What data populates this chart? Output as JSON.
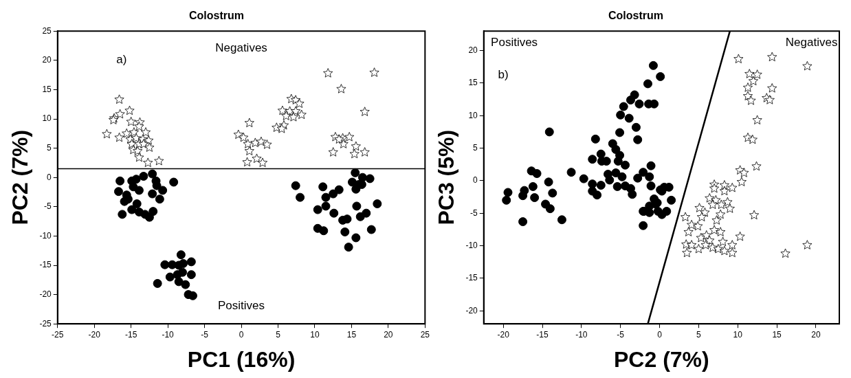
{
  "chart_data": [
    {
      "type": "scatter",
      "title": "Colostrum",
      "xlabel": "PC1 (16%)",
      "ylabel": "PC2 (7%)",
      "xlim": [
        -25,
        25
      ],
      "ylim": [
        -25,
        25
      ],
      "xticks": [
        -25,
        -20,
        -15,
        -10,
        -5,
        0,
        5,
        10,
        15,
        20,
        25
      ],
      "yticks": [
        -25,
        -20,
        -15,
        -10,
        -5,
        0,
        5,
        10,
        15,
        20,
        25
      ],
      "annotations": [
        "a)",
        "Negatives",
        "Positives"
      ],
      "ref_lines": [
        {
          "axis": "y",
          "value": 1.5,
          "color": "#000000"
        }
      ],
      "series": [
        {
          "color": "#000000",
          "marker": "star",
          "x": [
            -16.6,
            -15.2,
            -16.5,
            -17.3,
            -17.4,
            -18.3,
            -16.6,
            -15.0,
            -13.8,
            -13.9,
            -15.6,
            -14.6,
            -13.0,
            -15.1,
            -14.3,
            -13.4,
            -12.6,
            -14.9,
            -13.9,
            -13.3,
            -12.5,
            -14.7,
            -14.1,
            -13.9,
            -12.7,
            -11.2,
            11.8,
            18.1,
            13.6,
            16.8,
            1.1,
            6.8,
            7.4,
            7.9,
            5.6,
            6.6,
            7.4,
            6.1,
            7.1,
            8.2,
            4.8,
            5.8,
            5.5,
            -0.4,
            0.3,
            0.9,
            1.9,
            2.7,
            3.5,
            1.1,
            0.8,
            2.1,
            2.9,
            12.8,
            13.8,
            14.7,
            13.9,
            12.5,
            15.6,
            15.4,
            16.8,
            13.3
          ],
          "values": [
            13.3,
            11.4,
            10.8,
            10.1,
            9.8,
            7.4,
            6.8,
            9.5,
            9.4,
            8.7,
            7.5,
            7.7,
            7.7,
            6.5,
            6.7,
            6.5,
            6.3,
            5.7,
            5.7,
            5.7,
            5.1,
            4.7,
            4.5,
            3.4,
            2.5,
            2.8,
            17.8,
            17.9,
            15.1,
            11.2,
            9.3,
            13.4,
            13.2,
            12.6,
            11.4,
            11.3,
            11.3,
            10.5,
            10.3,
            10.7,
            8.5,
            8.9,
            8.3,
            7.3,
            6.8,
            5.7,
            5.9,
            6.1,
            5.6,
            4.5,
            2.6,
            3.2,
            2.5,
            6.9,
            6.7,
            6.9,
            5.7,
            4.3,
            5.3,
            4.0,
            4.3,
            6.5
          ]
        },
        {
          "color": "#000000",
          "marker": "circle",
          "x": [
            -16.5,
            -16.7,
            -15.6,
            -15.9,
            -16.2,
            -14.9,
            -14.3,
            -13.3,
            -12.1,
            -11.6,
            -14.7,
            -13.9,
            -11.5,
            -10.7,
            -12.1,
            -11.1,
            -9.2,
            -14.2,
            -14.9,
            -13.9,
            -13.1,
            -12.5,
            -12.0,
            -15.4,
            -8.2,
            -10.4,
            -9.4,
            -8.5,
            -7.9,
            -6.8,
            -8.0,
            -9.7,
            -8.7,
            -6.8,
            -8.5,
            -7.6,
            -11.4,
            -7.2,
            -6.6,
            15.5,
            16.5,
            17.5,
            15.1,
            16.0,
            7.4,
            8.0,
            11.1,
            13.3,
            12.5,
            11.5,
            10.4,
            11.5,
            12.6,
            15.7,
            17.0,
            16.2,
            18.5,
            13.8,
            14.4,
            14.1,
            10.4,
            11.2,
            17.7,
            15.6,
            14.6,
            16.4,
            15.6
          ],
          "values": [
            -0.6,
            -2.4,
            -3.0,
            -4.1,
            -6.3,
            -0.6,
            -0.3,
            0.2,
            0.6,
            -0.6,
            -1.6,
            -2.2,
            -1.4,
            -2.2,
            -2.8,
            -3.7,
            -0.8,
            -4.5,
            -5.5,
            -5.9,
            -6.3,
            -6.8,
            -5.8,
            -3.7,
            -13.2,
            -14.9,
            -14.9,
            -15.0,
            -14.7,
            -14.4,
            -16.2,
            -17.0,
            -16.6,
            -16.6,
            -17.8,
            -18.3,
            -18.1,
            -20.0,
            -20.2,
            0.8,
            0.0,
            -0.2,
            -0.8,
            -1.2,
            -1.4,
            -3.4,
            -1.6,
            -2.1,
            -2.8,
            -3.4,
            -5.5,
            -4.9,
            -6.1,
            -4.9,
            -6.1,
            -6.7,
            -4.5,
            -7.3,
            -7.1,
            -9.3,
            -8.7,
            -9.1,
            -8.9,
            -10.3,
            -11.9,
            -1.2,
            -2.0
          ]
        }
      ]
    },
    {
      "type": "scatter",
      "title": "Colostrum",
      "xlabel": "PC2 (7%)",
      "ylabel": "PC3 (5%)",
      "xlim": [
        -22.5,
        23
      ],
      "ylim": [
        -22,
        23
      ],
      "xticks": [
        -20,
        -15,
        -10,
        -5,
        0,
        5,
        10,
        15,
        20
      ],
      "yticks": [
        -20,
        -15,
        -10,
        -5,
        0,
        5,
        10,
        15,
        20
      ],
      "annotations": [
        "Positives",
        "b)",
        "Negatives"
      ],
      "series": [
        {
          "color": "#000000",
          "marker": "circle",
          "x": [
            -0.8,
            0.1,
            -1.5,
            -0.7,
            -1.4,
            -2.6,
            -3.2,
            -3.7,
            -4.6,
            -5.0,
            -3.9,
            -3.0,
            -2.8,
            -5.1,
            -6.0,
            -8.2,
            -14.1,
            -5.6,
            -5.1,
            -4.4,
            -5.3,
            -7.5,
            -6.8,
            -7.4,
            -8.6,
            -6.6,
            -5.6,
            -4.8,
            -6.4,
            -5.4,
            -4.4,
            -3.7,
            -3.5,
            -2.8,
            -2.1,
            -1.1,
            -1.3,
            -1.1,
            -0.7,
            0.1,
            0.6,
            -0.3,
            -1.3,
            -2.1,
            -1.3,
            -0.2,
            0.3,
            -2.1,
            -9.7,
            -11.3,
            -8.6,
            -7.5,
            -8.6,
            -8.0,
            -16.4,
            -15.7,
            -14.2,
            -16.2,
            -13.7,
            -17.3,
            -17.5,
            -16.0,
            -14.6,
            -14.0,
            -19.4,
            -19.6,
            -17.5,
            -12.5,
            1.2,
            1.5,
            0.9,
            0.3,
            -0.5,
            -2.0
          ],
          "values": [
            17.7,
            16.0,
            14.9,
            11.8,
            11.8,
            11.8,
            13.2,
            12.4,
            11.4,
            10.1,
            9.6,
            8.2,
            6.3,
            7.4,
            5.7,
            6.4,
            7.5,
            4.8,
            3.9,
            2.4,
            3.0,
            4.1,
            3.0,
            3.0,
            3.3,
            1.0,
            1.2,
            0.6,
            0.1,
            -0.9,
            -0.8,
            -1.2,
            -2.1,
            0.4,
            1.3,
            2.3,
            0.6,
            -0.8,
            -2.8,
            -1.4,
            -1.0,
            -3.4,
            -3.9,
            -4.7,
            -4.9,
            -4.7,
            -5.2,
            -6.9,
            0.3,
            1.3,
            -0.5,
            -0.7,
            -1.6,
            -2.2,
            1.5,
            1.1,
            -0.2,
            -0.9,
            -1.9,
            -1.5,
            -2.3,
            -2.6,
            -3.6,
            -4.3,
            -1.8,
            -3.0,
            -6.3,
            -6.0,
            -1.0,
            -3.0,
            -4.7,
            -1.6,
            -3.6,
            -4.7
          ]
        },
        {
          "color": "#000000",
          "marker": "star",
          "x": [
            10.1,
            14.4,
            18.9,
            11.5,
            12.5,
            12.0,
            11.3,
            14.4,
            11.3,
            11.7,
            13.7,
            14.1,
            12.5,
            11.3,
            11.9,
            12.4,
            10.3,
            10.8,
            10.5,
            7.0,
            8.3,
            9.3,
            8.3,
            7.0,
            6.4,
            7.2,
            8.1,
            8.7,
            6.8,
            7.9,
            9.0,
            5.1,
            5.8,
            5.4,
            7.8,
            7.3,
            12.1,
            3.3,
            4.1,
            4.9,
            3.7,
            7.0,
            7.8,
            10.3,
            5.3,
            6.0,
            6.4,
            3.4,
            4.1,
            5.0,
            5.9,
            6.8,
            8.1,
            7.5,
            8.3,
            9.3,
            9.3,
            3.5,
            16.1,
            18.9
          ],
          "values": [
            18.7,
            19.0,
            17.6,
            16.4,
            16.3,
            15.3,
            14.3,
            14.2,
            13.0,
            12.3,
            12.7,
            12.4,
            9.3,
            6.6,
            6.3,
            2.2,
            1.6,
            1.2,
            -0.2,
            -0.6,
            -0.7,
            -1.1,
            -1.6,
            -1.2,
            -2.7,
            -3.0,
            null,
            -3.3,
            -3.7,
            -3.7,
            -4.3,
            -4.2,
            -4.9,
            -5.6,
            -5.2,
            -6.1,
            -5.3,
            -5.6,
            -6.8,
            -7.0,
            -7.9,
            -7.6,
            -7.9,
            -8.6,
            -8.8,
            -8.4,
            -9.2,
            -9.8,
            -9.9,
            -10.5,
            -9.9,
            -10.3,
            -9.4,
            -10.5,
            -10.8,
            -9.9,
            -11.1,
            -11.1,
            -11.2,
            -9.9
          ]
        },
        {
          "type": "line",
          "color": "#000000",
          "x": [
            -1.5,
            9
          ],
          "values": [
            -22,
            23
          ]
        }
      ]
    }
  ]
}
